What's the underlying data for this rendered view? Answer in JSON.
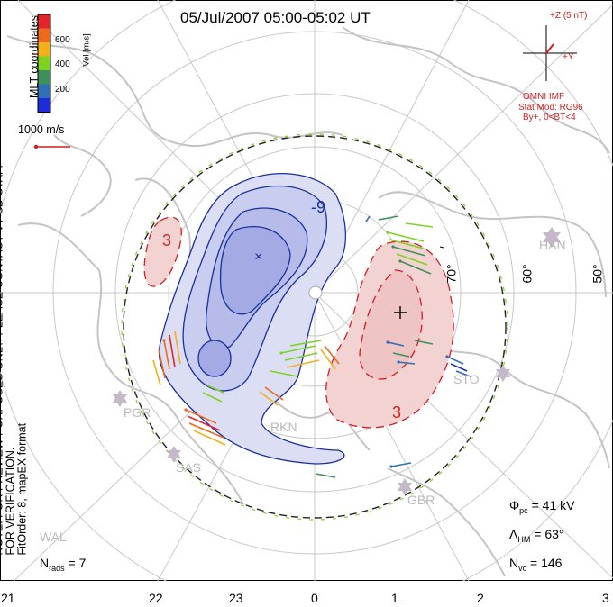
{
  "title": "05/Jul/2007 05:00-05:02 UT",
  "side_note": {
    "line1": "NOTE: FOR PREVIEW PURPOSES ONLY. PLEASE CONTACT VT-SD STAFF FOR VERIFICATION.",
    "line2": "FitOrder: 8, mapEX format"
  },
  "coordinates_label": "MLT coordinates",
  "colorbar": {
    "label": "Vel [m/s]",
    "ticks": [
      "600",
      "400",
      "200"
    ],
    "colors": [
      "#e3242b",
      "#ec6a1c",
      "#f3b019",
      "#7ed321",
      "#3f8f5a",
      "#2f6fb5",
      "#1d2bd8"
    ]
  },
  "scale_vector": {
    "label": "1000 m/s"
  },
  "imf": {
    "z_label": "+Z (5 nT)",
    "y_label": "+Y",
    "source": "OMNI IMF",
    "model": "Stat Mod: RG96",
    "condition": "By+, 0<BT<4",
    "color": "#d21f1f"
  },
  "mlt_labels": [
    "21",
    "22",
    "23",
    "0",
    "1",
    "2",
    "3"
  ],
  "latitude_labels": [
    "70°",
    "60°",
    "50°"
  ],
  "contour_labels": {
    "negative": "-9",
    "pos_dusk": "3",
    "pos_dawn": "3"
  },
  "stations": [
    "HAN",
    "STO",
    "PGR",
    "RKN",
    "SAS",
    "GBR",
    "WAL"
  ],
  "stats": {
    "phi_pc_label": "Φ",
    "phi_pc_sub": "pc",
    "phi_pc_value": "= 41 kV",
    "lambda_label": "Λ",
    "lambda_sub": "HM",
    "lambda_value": "= 63°",
    "nvc_label": "N",
    "nvc_sub": "vc",
    "nvc_value": "= 146",
    "nrads_label": "N",
    "nrads_sub": "rads",
    "nrads_value": "= 7"
  },
  "colors": {
    "negative_fill": "#c9cdef",
    "negative_contour": "#1a2fa0",
    "positive_fill": "#f3d2d2",
    "positive_contour": "#d21f1f",
    "coastline": "#c4c4c4",
    "grid": "#c8c8c8"
  }
}
